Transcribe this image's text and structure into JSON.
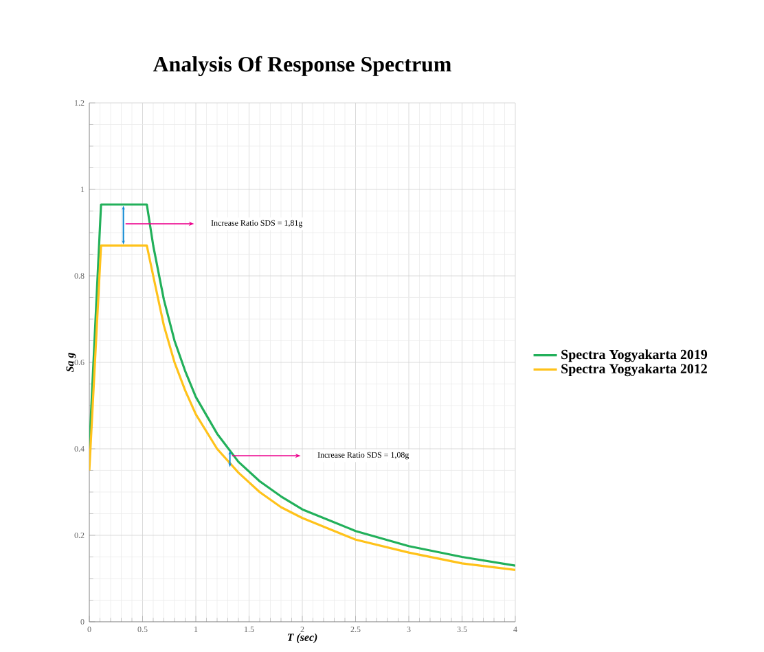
{
  "chart_data": {
    "type": "line",
    "title": "Analysis Of Response Spectrum",
    "xlabel": "T (sec)",
    "ylabel": "Sa g",
    "x": [
      0,
      0.11,
      0.54,
      0.6,
      0.7,
      0.8,
      0.9,
      1.0,
      1.2,
      1.4,
      1.6,
      1.8,
      2.0,
      2.5,
      3.0,
      3.5,
      4.0
    ],
    "series": [
      {
        "name": "Spectra Yogyakarta 2019",
        "color": "#22b05a",
        "values": [
          0.4,
          0.965,
          0.965,
          0.87,
          0.745,
          0.65,
          0.58,
          0.52,
          0.435,
          0.37,
          0.325,
          0.29,
          0.26,
          0.21,
          0.175,
          0.15,
          0.13
        ]
      },
      {
        "name": "Spectra Yogyakarta 2012",
        "color": "#ffc21a",
        "values": [
          0.35,
          0.87,
          0.87,
          0.8,
          0.685,
          0.6,
          0.535,
          0.48,
          0.4,
          0.345,
          0.3,
          0.265,
          0.24,
          0.19,
          0.16,
          0.135,
          0.12
        ]
      }
    ],
    "annotations": [
      "Increase Ratio SDS = 1,81g",
      "Increase Ratio SDS = 1,08g"
    ],
    "xlim": [
      0,
      4
    ],
    "ylim": [
      0,
      1.2
    ],
    "xticks": [
      0,
      0.5,
      1,
      1.5,
      2,
      2.5,
      3,
      3.5,
      4
    ],
    "yticks": [
      0,
      0.2,
      0.4,
      0.6,
      0.8,
      1,
      1.2
    ],
    "grid": true,
    "legend": "right",
    "marker": "none",
    "line_style": "solid"
  }
}
